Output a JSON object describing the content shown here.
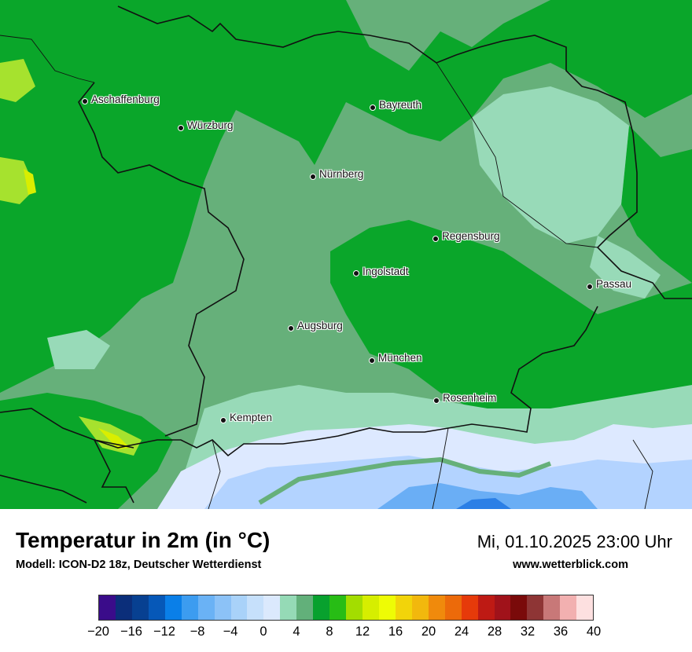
{
  "map": {
    "cities": [
      {
        "name": "Aschaffenburg"
      },
      {
        "name": "Würzburg"
      },
      {
        "name": "Bayreuth"
      },
      {
        "name": "Nürnberg"
      },
      {
        "name": "Regensburg"
      },
      {
        "name": "Ingolstadt"
      },
      {
        "name": "Passau"
      },
      {
        "name": "Augsburg"
      },
      {
        "name": "München"
      },
      {
        "name": "Rosenheim"
      },
      {
        "name": "Kempten"
      }
    ],
    "field_colors": {
      "green_dark": "#0aa62a",
      "green_mid": "#66b07a",
      "mint": "#98dab8",
      "lime": "#a6e22e",
      "yellow_green": "#d9ee00",
      "pale_blue": "#dde9ff",
      "light_blue": "#b3d3ff",
      "blue": "#6aaef5",
      "deep_blue": "#2b7fe6"
    }
  },
  "header": {
    "title": "Temperatur in 2m (in °C)",
    "subtitle": "Modell: ICON-D2 18z, Deutscher Wetterdienst",
    "datetime": "Mi, 01.10.2025 23:00 Uhr",
    "website": "www.wetterblick.com"
  },
  "legend": {
    "colors": [
      "#3a0c8a",
      "#0b2e7a",
      "#074091",
      "#0658b8",
      "#0a7fe8",
      "#3c9cf0",
      "#6ab2f5",
      "#8cc2f7",
      "#a9d2f9",
      "#c6e0fb",
      "#dbe9fd",
      "#95dab6",
      "#62b07a",
      "#08a12e",
      "#27bd15",
      "#a3dd00",
      "#d6ee00",
      "#eefc05",
      "#f2d40a",
      "#f2b80d",
      "#f08a0c",
      "#ec6a0a",
      "#e63a0a",
      "#be1a14",
      "#a0121a",
      "#7a0a0a",
      "#8e3535",
      "#c87878",
      "#f2b0b0",
      "#fde0e0"
    ],
    "ticks": [
      "−20",
      "−16",
      "−12",
      "−8",
      "−4",
      "0",
      "4",
      "8",
      "12",
      "16",
      "20",
      "24",
      "28",
      "32",
      "36",
      "40"
    ]
  }
}
